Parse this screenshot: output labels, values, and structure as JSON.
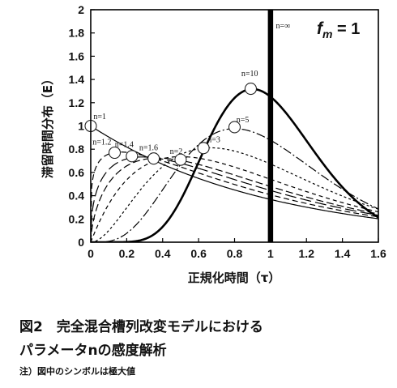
{
  "chart_data": {
    "type": "line",
    "xlabel": "正規化時間（τ）",
    "ylabel": "滞留時間分布（E）",
    "xlim": [
      0,
      1.6
    ],
    "ylim": [
      0,
      2
    ],
    "xticks": [
      "0",
      "0.2",
      "0.4",
      "0.6",
      "0.8",
      "1",
      "1.2",
      "1.4",
      "1.6"
    ],
    "yticks": [
      "0",
      "0.2",
      "0.4",
      "0.6",
      "0.8",
      "1",
      "1.2",
      "1.4",
      "1.6",
      "1.8",
      "2"
    ],
    "annotation": {
      "prefix": "f",
      "subscript": "m",
      "suffix": " = 1"
    },
    "grid": false,
    "legend": "none",
    "series": [
      {
        "name": "n=1",
        "n": 1,
        "dash": "solid",
        "width": 1.2
      },
      {
        "name": "n=1.2",
        "n": 1.2,
        "dash": "7,4",
        "width": 1.2
      },
      {
        "name": "n=1.4",
        "n": 1.4,
        "dash": "14,5",
        "width": 1.2
      },
      {
        "name": "n=1.6",
        "n": 1.6,
        "dash": "9,4",
        "width": 1.2
      },
      {
        "name": "n=2",
        "n": 2,
        "dash": "5,4",
        "width": 1.2
      },
      {
        "name": "n=3",
        "n": 3,
        "dash": "3,3",
        "width": 1.2
      },
      {
        "name": "n=5",
        "n": 5,
        "dash": "11,3,2,3",
        "width": 1.2
      },
      {
        "name": "n=10",
        "n": 10,
        "dash": "solid",
        "width": 2.6
      },
      {
        "name": "n=∞",
        "n": null,
        "dash": "solid",
        "width": 6.5,
        "vertical_x": 1
      }
    ],
    "peaks": [
      {
        "n": 1,
        "x": 0,
        "y": 1.0
      },
      {
        "n": 1.2,
        "x": 0.133,
        "y": 0.77
      },
      {
        "n": 1.4,
        "x": 0.229,
        "y": 0.74
      },
      {
        "n": 1.6,
        "x": 0.35,
        "y": 0.72
      },
      {
        "n": 2,
        "x": 0.5,
        "y": 0.71
      },
      {
        "n": 3,
        "x": 0.627,
        "y": 0.81
      },
      {
        "n": 5,
        "x": 0.8,
        "y": 0.99
      },
      {
        "n": 10,
        "x": 0.89,
        "y": 1.32
      }
    ]
  },
  "caption": {
    "title": "図2　完全混合槽列改変モデルにおける",
    "title2": "パラメータnの感度解析",
    "note": "注）図中のシンボルは極大値"
  }
}
